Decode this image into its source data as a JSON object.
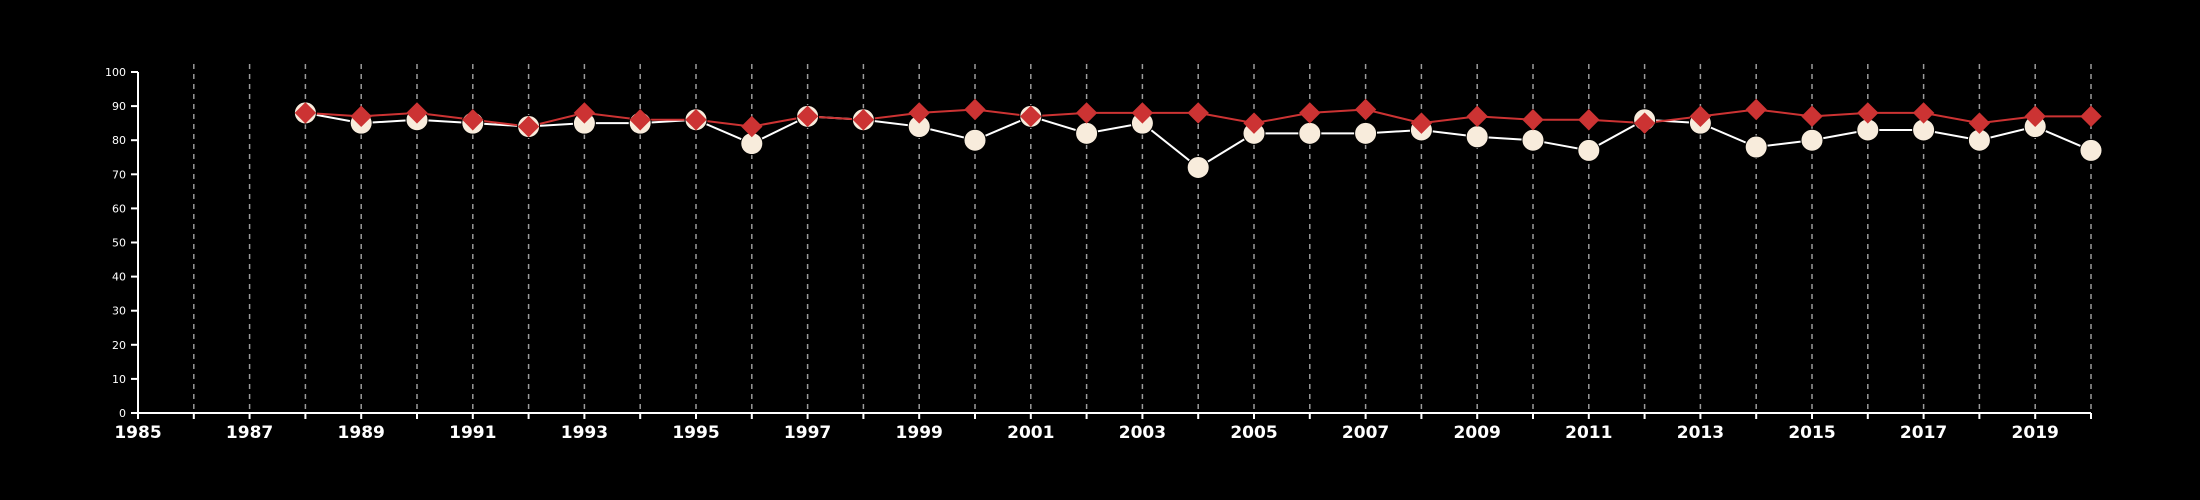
{
  "chart_data": {
    "type": "line",
    "title": "",
    "xlabel": "",
    "ylabel": "",
    "xlim": [
      1985,
      2020
    ],
    "ylim": [
      0,
      100
    ],
    "x_ticks_labeled": [
      "1985",
      "1987",
      "1989",
      "1991",
      "1993",
      "1995",
      "1997",
      "1999",
      "2001",
      "2003",
      "2005",
      "2007",
      "2009",
      "2011",
      "2013",
      "2015",
      "2017",
      "2019"
    ],
    "y_ticks": [
      "0",
      "10",
      "20",
      "30",
      "40",
      "50",
      "60",
      "70",
      "80",
      "90",
      "100"
    ],
    "vertical_grid": "dashed, every year from 1986",
    "colors": {
      "background": "#000000",
      "axis": "#ffffff",
      "grid": "#9a9a9a",
      "series_a_line": "#ffffff",
      "series_a_marker": "#f8ecdc",
      "series_b": "#cc3333"
    },
    "x": [
      1988,
      1989,
      1990,
      1991,
      1992,
      1993,
      1994,
      1995,
      1996,
      1997,
      1998,
      1999,
      2000,
      2001,
      2002,
      2003,
      2004,
      2005,
      2006,
      2007,
      2008,
      2009,
      2010,
      2011,
      2012,
      2013,
      2014,
      2015,
      2016,
      2017,
      2018,
      2019,
      2020
    ],
    "series": [
      {
        "marker": "circle",
        "values": [
          88,
          85,
          86,
          85,
          84,
          85,
          85,
          86,
          79,
          87,
          86,
          84,
          80,
          87,
          82,
          85,
          72,
          82,
          82,
          82,
          83,
          81,
          80,
          77,
          86,
          85,
          78,
          80,
          83,
          83,
          80,
          84,
          77
        ]
      },
      {
        "marker": "diamond",
        "values": [
          88,
          87,
          88,
          86,
          84,
          88,
          86,
          86,
          84,
          87,
          86,
          88,
          89,
          87,
          88,
          88,
          88,
          85,
          88,
          89,
          85,
          87,
          86,
          86,
          85,
          87,
          89,
          87,
          88,
          88,
          85,
          87,
          87
        ]
      }
    ]
  }
}
